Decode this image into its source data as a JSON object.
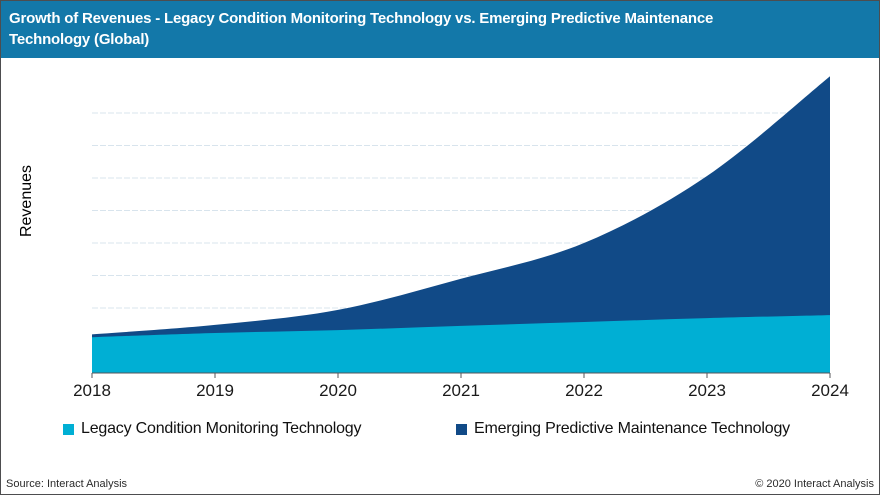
{
  "header": {
    "title_line1": "Growth of Revenues - Legacy Condition Monitoring Technology vs. Emerging Predictive Maintenance",
    "title_line2": "Technology (Global)"
  },
  "chart_data": {
    "type": "area",
    "stacked": true,
    "title": "Growth of Revenues - Legacy Condition Monitoring Technology vs. Emerging Predictive Maintenance Technology (Global)",
    "x": [
      2018,
      2019,
      2020,
      2021,
      2022,
      2023,
      2024
    ],
    "series": [
      {
        "name": "Legacy Condition Monitoring Technology",
        "color": "#00AFD4",
        "values": [
          11,
          12.3,
          13.2,
          14.5,
          15.7,
          16.9,
          17.8
        ]
      },
      {
        "name": "Emerging Predictive Maintenance Technology",
        "color": "#114A87",
        "values": [
          0.9,
          2.5,
          6.2,
          14.5,
          24.3,
          43.7,
          73.5
        ]
      }
    ],
    "xlabel": "",
    "ylabel": "Revenues",
    "ylim": [
      0,
      95
    ],
    "y_tick_labels_shown": false,
    "gridline_values": [
      10,
      20,
      30,
      40,
      50,
      60,
      70,
      80
    ],
    "grid": "horizontal-dashed",
    "legend_position": "bottom"
  },
  "footer": {
    "source": "Source: Interact Analysis",
    "copyright": "© 2020 Interact Analysis"
  },
  "colors": {
    "header_bg": "#1378A9",
    "header_text": "#FFFFFF",
    "gridline": "#D8E4ED",
    "axis": "#55565A",
    "label_text": "#1A1A1A",
    "border": "#4D4D4F"
  }
}
